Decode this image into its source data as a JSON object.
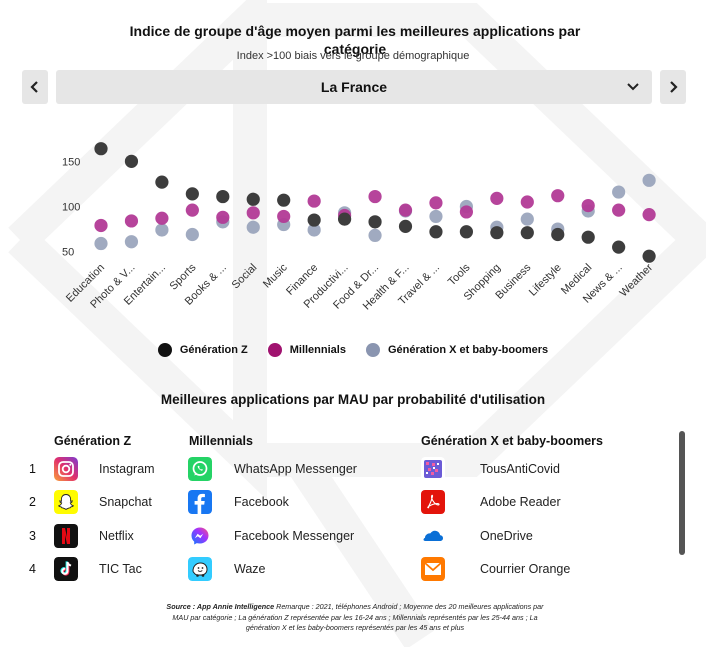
{
  "header": {
    "title": "Indice de groupe d'âge moyen parmi les meilleures applications par catégorie",
    "subtitle": "Index >100 biais vers le groupe démographique"
  },
  "nav": {
    "prev_icon": "chevron-left-icon",
    "next_icon": "chevron-right-icon",
    "selected_country": "La France",
    "dropdown_icon": "chevron-down-icon"
  },
  "colors": {
    "gen_z": "#3d3d3d",
    "millennials": "#b23a96",
    "gen_x": "#8f9bb5"
  },
  "chart_data": {
    "type": "scatter",
    "categories": [
      "Education",
      "Photo & V...",
      "Entertain...",
      "Sports",
      "Books & ...",
      "Social",
      "Music",
      "Finance",
      "Productivi...",
      "Food & Dr...",
      "Health & F...",
      "Travel & ...",
      "Tools",
      "Shopping",
      "Business",
      "Lifestyle",
      "Medical",
      "News & ...",
      "Weather"
    ],
    "series": [
      {
        "name": "Génération Z",
        "values": [
          164,
          150,
          127,
          114,
          111,
          108,
          107,
          85,
          86,
          83,
          78,
          72,
          72,
          71,
          71,
          69,
          66,
          55,
          45
        ]
      },
      {
        "name": "Millennials",
        "values": [
          79,
          84,
          87,
          96,
          88,
          93,
          89,
          106,
          90,
          111,
          96,
          104,
          94,
          109,
          105,
          112,
          101,
          96,
          91
        ]
      },
      {
        "name": "Génération X et baby-boomers",
        "values": [
          59,
          61,
          74,
          69,
          83,
          77,
          80,
          74,
          93,
          68,
          95,
          89,
          100,
          77,
          86,
          75,
          95,
          116,
          129
        ]
      }
    ],
    "yticks": [
      50,
      100,
      150
    ],
    "ylim": [
      25,
      180
    ],
    "grid": false,
    "legend_position": "bottom-center"
  },
  "legend": [
    {
      "label": "Génération Z"
    },
    {
      "label": "Millennials"
    },
    {
      "label": "Génération X et baby-boomers"
    }
  ],
  "top_apps": {
    "title": "Meilleures applications par MAU par probabilité d'utilisation",
    "columns": [
      "Génération Z",
      "Millennials",
      "Génération X et baby-boomers"
    ],
    "ranks": [
      "1",
      "2",
      "3",
      "4"
    ],
    "gen_z": [
      {
        "name": "Instagram",
        "icon": "instagram-icon"
      },
      {
        "name": "Snapchat",
        "icon": "snapchat-icon"
      },
      {
        "name": "Netflix",
        "icon": "netflix-icon"
      },
      {
        "name": "TIC Tac",
        "icon": "tiktok-icon"
      }
    ],
    "millennials": [
      {
        "name": "WhatsApp Messenger",
        "icon": "whatsapp-icon"
      },
      {
        "name": "Facebook",
        "icon": "facebook-icon"
      },
      {
        "name": "Facebook Messenger",
        "icon": "messenger-icon"
      },
      {
        "name": "Waze",
        "icon": "waze-icon"
      }
    ],
    "gen_x": [
      {
        "name": "TousAntiCovid",
        "icon": "tousanticovid-icon"
      },
      {
        "name": "Adobe Reader",
        "icon": "adobe-reader-icon"
      },
      {
        "name": "OneDrive",
        "icon": "onedrive-icon"
      },
      {
        "name": "Courrier Orange",
        "icon": "orange-mail-icon"
      }
    ]
  },
  "footnote": {
    "source": "Source : App Annie Intelligence",
    "text": " Remarque : 2021, téléphones Android ; Moyenne des 20 meilleures applications par MAU par catégorie ; La génération Z représentée par les 16-24 ans ; Millennials représentés par les 25-44 ans ; La génération X et les baby-boomers représentés par les 45 ans et plus"
  }
}
